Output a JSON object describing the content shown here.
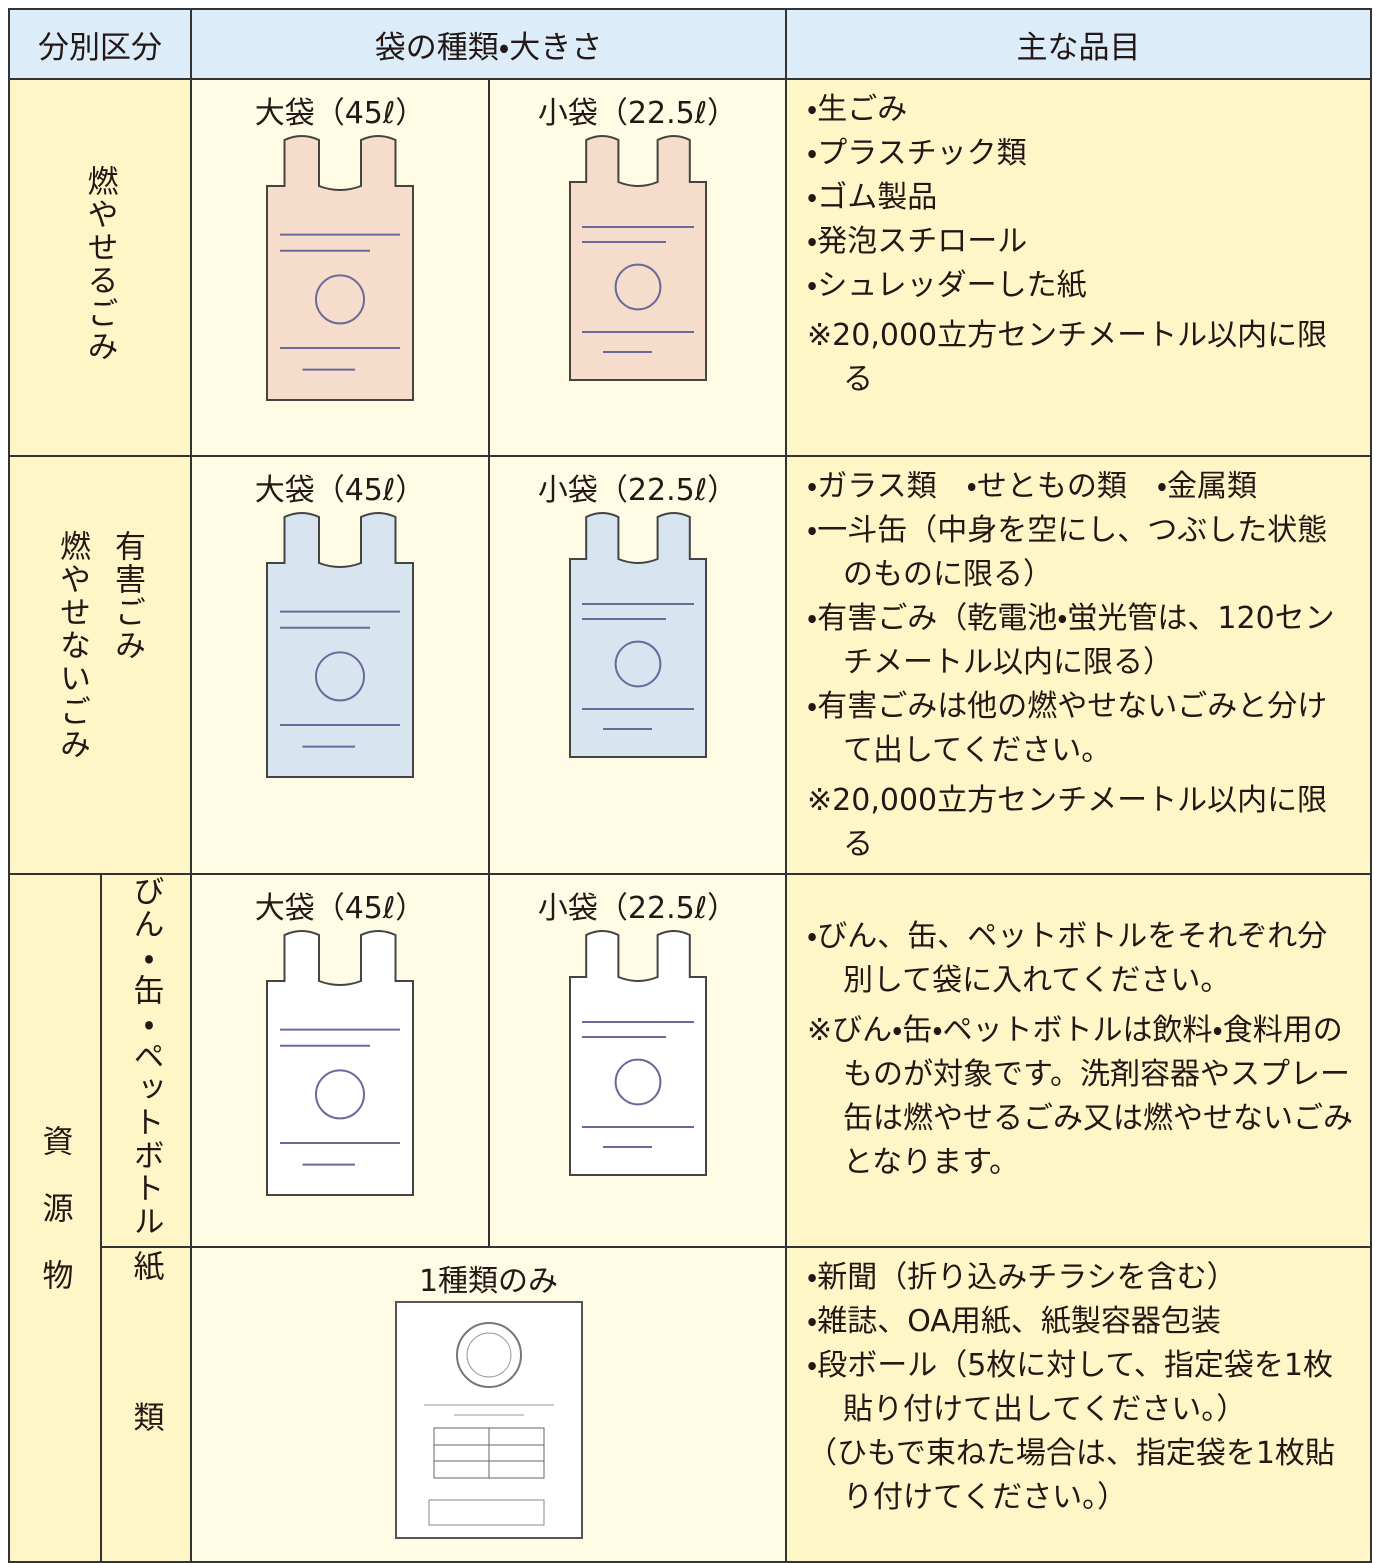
{
  "header": [
    "分別区分",
    "袋の種類・大きさ",
    "主な品目"
  ],
  "rows": [
    {
      "category": "燃やせるごみ",
      "bags": [
        "大袋（45ℓ）",
        "小袋（22.5ℓ）"
      ],
      "items": [
        "・生ごみ",
        "・プラスチック類",
        "・ゴム製品",
        "・発泡スチロール",
        "・シュレッダーした紙"
      ],
      "note": "※20,000立方センチメートル以内に限る"
    },
    {
      "category": "燃やせないごみ",
      "subcategory": "有害ごみ",
      "bags": [
        "大袋（45ℓ）",
        "小袋（22.5ℓ）"
      ],
      "items": [
        "・ガラス類　・せともの類　・金属類",
        "・一斗缶（中身を空にし、つぶした状態のものに限る）",
        "・有害ごみ（乾電池・蛍光管は、120センチメートル以内に限る）",
        "・有害ごみは他の燃やせないごみと分けて出してください。"
      ],
      "note": "※20,000立方センチメートル以内に限る"
    },
    {
      "category": "資源物",
      "subcategory": "びん・缶・ペットボトル",
      "bags": [
        "大袋（45ℓ）",
        "小袋（22.5ℓ）"
      ],
      "items": [
        "・びん、缶、ペットボトルをそれぞれ分別して袋に入れてください。"
      ],
      "note": "※びん・缶・ペットボトルは飲料・食料用のものが対象です。洗剤容器やスプレー缶は燃やせるごみ又は燃やせないごみとなります。"
    },
    {
      "subcategory": "紙類",
      "bags": [
        "1種類のみ"
      ],
      "items": [
        "・新聞（折り込みチラシを含む）",
        "・雑誌、OA用紙、紙製容器包装",
        "・段ボール（5枚に対して、指定袋を1枚貼り付けて出してください。）",
        "（ひもで束ねた場合は、指定袋を1枚貼り付けてください。）"
      ]
    }
  ]
}
